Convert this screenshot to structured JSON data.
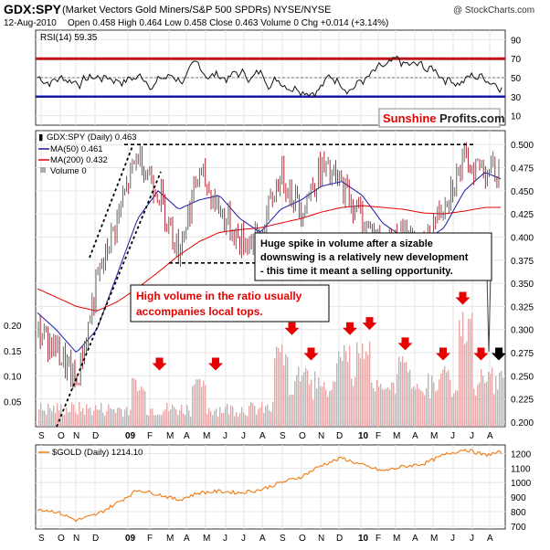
{
  "header": {
    "symbol": "GDX:SPY",
    "description": "(Market Vectors Gold Miners/S&P 500 SPDRs) NYSE/NYSE",
    "watermark": "@ StockCharts.com",
    "date": "12-Aug-2010",
    "quote": "Open 0.458  High 0.464  Low 0.458  Close 0.463  Volume 0  Chg +0.014 (+3.14%)"
  },
  "rsi_panel": {
    "label": "RSI(14) 59.35",
    "levels": [
      90,
      70,
      50,
      30,
      10
    ],
    "overbought": 70,
    "oversold": 30,
    "ylim": [
      0,
      100
    ],
    "colors": {
      "overbought": "#c0141a",
      "oversold": "#1a1aa8",
      "line": "#111111"
    }
  },
  "main_panel": {
    "legend": {
      "title": "GDX:SPY (Daily) 0.463",
      "ma50": "MA(50) 0.461",
      "ma200": "MA(200) 0.432",
      "volume": "Volume 0"
    },
    "logo": {
      "part1": "Sunshine",
      "part2": "Profits.com"
    },
    "price_ticks": [
      "0.500",
      "0.475",
      "0.450",
      "0.425",
      "0.400",
      "0.375",
      "0.350",
      "0.325",
      "0.300",
      "0.275",
      "0.250",
      "0.225",
      "0.200"
    ],
    "volume_ticks": [
      "0.20",
      "0.15",
      "0.10",
      "0.05"
    ],
    "x_ticks": [
      "S",
      "O",
      "N",
      "D",
      "09",
      "F",
      "M",
      "A",
      "M",
      "J",
      "J",
      "A",
      "S",
      "O",
      "N",
      "D",
      "10",
      "F",
      "M",
      "A",
      "M",
      "J",
      "J",
      "A"
    ],
    "annotation_spike": {
      "line1": "Huge spike in volume after a sizable",
      "line2": "downswing is a relatively new development",
      "line3": "- this time it meant a selling opportunity."
    },
    "annotation_volume": {
      "line1": "High volume in the ratio usually",
      "line2": "accompanies local tops."
    },
    "colors": {
      "ma50": "#1a1aa8",
      "ma200": "#e60000",
      "up": "#555555",
      "down": "#b01020",
      "arrow": "#e60000",
      "arrow_last": "#000000"
    }
  },
  "gold_panel": {
    "legend": "$GOLD (Daily) 1214.10",
    "ticks": [
      "1200",
      "1100",
      "1000",
      "900",
      "800",
      "700"
    ],
    "x_ticks": [
      "S",
      "O",
      "N",
      "D",
      "09",
      "F",
      "M",
      "A",
      "M",
      "J",
      "J",
      "A",
      "S",
      "O",
      "N",
      "D",
      "10",
      "F",
      "M",
      "A",
      "M",
      "J",
      "J",
      "A"
    ],
    "color": "#f07a10"
  },
  "chart_data": {
    "type": "line",
    "title": "GDX:SPY (Market Vectors Gold Miners/S&P 500 SPDRs)",
    "x": [
      "2008-09",
      "2008-10",
      "2008-11",
      "2008-12",
      "2009-01",
      "2009-02",
      "2009-03",
      "2009-04",
      "2009-05",
      "2009-06",
      "2009-07",
      "2009-08",
      "2009-09",
      "2009-10",
      "2009-11",
      "2009-12",
      "2010-01",
      "2010-02",
      "2010-03",
      "2010-04",
      "2010-05",
      "2010-06",
      "2010-07",
      "2010-08"
    ],
    "series": [
      {
        "name": "GDX:SPY",
        "values": [
          0.3,
          0.28,
          0.24,
          0.35,
          0.42,
          0.49,
          0.45,
          0.385,
          0.47,
          0.43,
          0.395,
          0.4,
          0.47,
          0.43,
          0.475,
          0.455,
          0.42,
          0.39,
          0.4,
          0.385,
          0.44,
          0.48,
          0.475,
          0.463
        ]
      },
      {
        "name": "MA(50)",
        "values": [
          0.32,
          0.3,
          0.275,
          0.3,
          0.36,
          0.42,
          0.45,
          0.43,
          0.44,
          0.445,
          0.42,
          0.405,
          0.43,
          0.44,
          0.455,
          0.46,
          0.445,
          0.415,
          0.4,
          0.395,
          0.41,
          0.45,
          0.47,
          0.461
        ]
      },
      {
        "name": "MA(200)",
        "values": [
          0.345,
          0.335,
          0.325,
          0.32,
          0.33,
          0.345,
          0.362,
          0.38,
          0.395,
          0.405,
          0.408,
          0.41,
          0.415,
          0.42,
          0.427,
          0.432,
          0.434,
          0.432,
          0.43,
          0.426,
          0.425,
          0.428,
          0.432,
          0.432
        ]
      },
      {
        "name": "$GOLD",
        "values": [
          820,
          800,
          740,
          780,
          860,
          950,
          920,
          880,
          930,
          940,
          930,
          950,
          1000,
          1040,
          1120,
          1170,
          1120,
          1080,
          1110,
          1130,
          1190,
          1230,
          1190,
          1214.1
        ]
      }
    ],
    "volume": {
      "x": [
        "2009-02",
        "2009-05",
        "2009-09",
        "2009-10",
        "2009-12",
        "2010-01",
        "2010-03",
        "2010-05",
        "2010-06",
        "2010-07",
        "2010-08"
      ],
      "values": [
        0.1,
        0.1,
        0.17,
        0.12,
        0.17,
        0.18,
        0.14,
        0.12,
        0.23,
        0.12,
        0.12
      ]
    },
    "resistance": 0.5,
    "support": 0.372,
    "ylim": [
      0.195,
      0.515
    ],
    "volume_ylim": [
      0,
      0.22
    ],
    "gold_ylim": [
      680,
      1260
    ]
  }
}
